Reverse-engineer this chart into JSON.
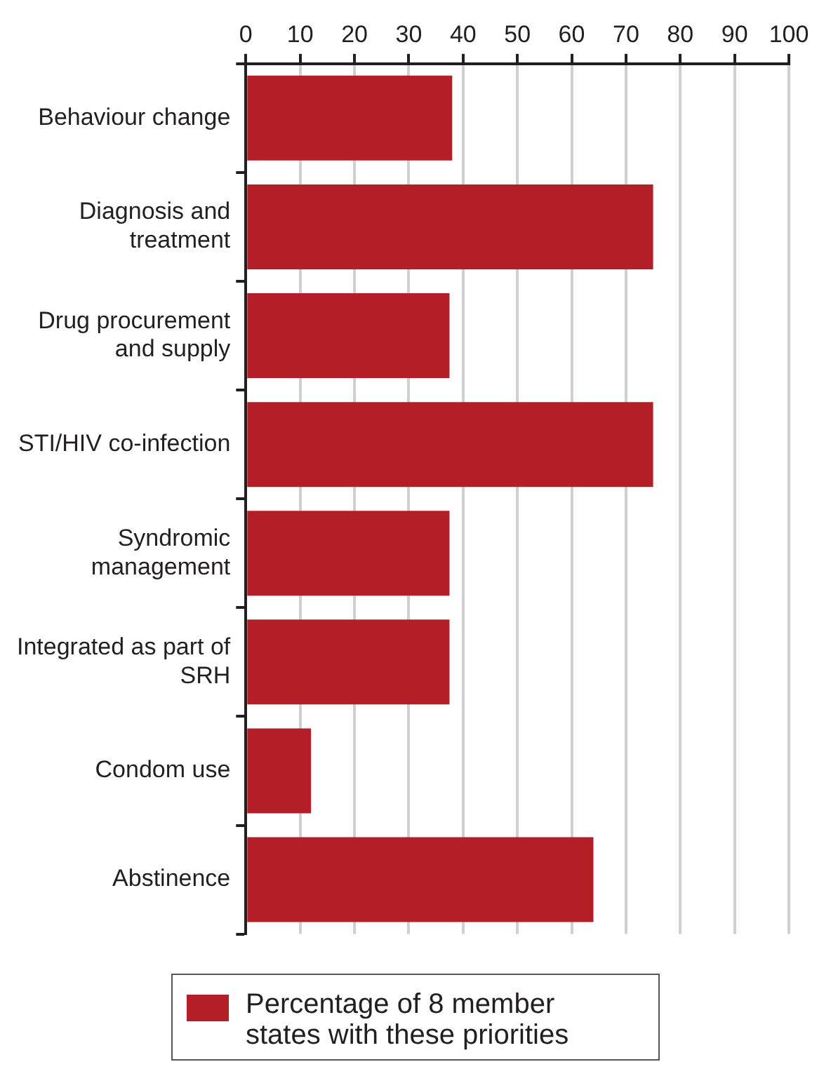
{
  "chart_data": {
    "type": "bar",
    "orientation": "horizontal",
    "categories": [
      "Behaviour change",
      "Diagnosis and treatment",
      "Drug procurement and supply",
      "STI/HIV co-infection",
      "Syndromic management",
      "Integrated as part of SRH",
      "Condom use",
      "Abstinence"
    ],
    "series": [
      {
        "name": "Percentage of 8 member states with these priorities",
        "color": "#b41f27",
        "values": [
          38,
          75,
          37.5,
          75,
          37.5,
          37.5,
          12,
          64
        ]
      }
    ],
    "xlim": [
      0,
      100
    ],
    "xticks": [
      0,
      10,
      20,
      30,
      40,
      50,
      60,
      70,
      80,
      90,
      100
    ],
    "grid": "x",
    "legend": "bottom"
  }
}
